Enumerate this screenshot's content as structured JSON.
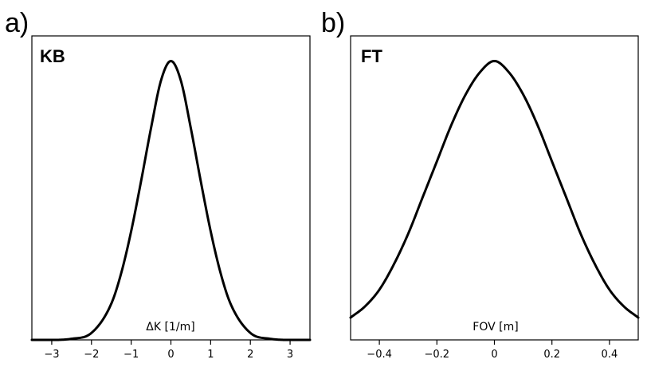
{
  "chart_data": [
    {
      "type": "line",
      "panel_label": "a)",
      "title": "KB",
      "xlabel": "ΔK [1/m]",
      "ylabel": "",
      "xlim": [
        -3.5,
        3.5
      ],
      "ylim": [
        0,
        1.09
      ],
      "xticks": [
        -3,
        -2,
        -1,
        0,
        1,
        2,
        3
      ],
      "xtick_labels": [
        "−3",
        "−2",
        "−1",
        "0",
        "1",
        "2",
        "3"
      ],
      "grid": false,
      "legend": "none",
      "curve": {
        "x": [
          -3.5,
          -3.0,
          -2.5,
          -2.0,
          -1.5,
          -1.25,
          -1.0,
          -0.75,
          -0.5,
          -0.25,
          0,
          0.25,
          0.5,
          0.75,
          1.0,
          1.25,
          1.5,
          2.0,
          2.5,
          3.0,
          3.5
        ],
        "y": [
          0.0,
          0.0,
          0.004,
          0.025,
          0.13,
          0.24,
          0.39,
          0.57,
          0.76,
          0.93,
          1.0,
          0.93,
          0.76,
          0.57,
          0.39,
          0.24,
          0.13,
          0.025,
          0.004,
          0.0,
          0.0
        ]
      }
    },
    {
      "type": "line",
      "panel_label": "b)",
      "title": "FT",
      "xlabel": "FOV [m]",
      "ylabel": "",
      "xlim": [
        -0.5,
        0.5
      ],
      "ylim": [
        0,
        1.09
      ],
      "xticks": [
        -0.4,
        -0.2,
        0,
        0.2,
        0.4
      ],
      "xtick_labels": [
        "−0.4",
        "−0.2",
        "0",
        "0.2",
        "0.4"
      ],
      "grid": false,
      "legend": "none",
      "curve": {
        "x": [
          -0.5,
          -0.45,
          -0.4,
          -0.35,
          -0.3,
          -0.25,
          -0.2,
          -0.15,
          -0.1,
          -0.05,
          0,
          0.05,
          0.1,
          0.15,
          0.2,
          0.25,
          0.3,
          0.35,
          0.4,
          0.45,
          0.5
        ],
        "y": [
          0.08,
          0.12,
          0.18,
          0.27,
          0.38,
          0.51,
          0.64,
          0.77,
          0.88,
          0.96,
          1.0,
          0.96,
          0.88,
          0.77,
          0.64,
          0.51,
          0.38,
          0.27,
          0.18,
          0.12,
          0.08
        ]
      }
    }
  ]
}
